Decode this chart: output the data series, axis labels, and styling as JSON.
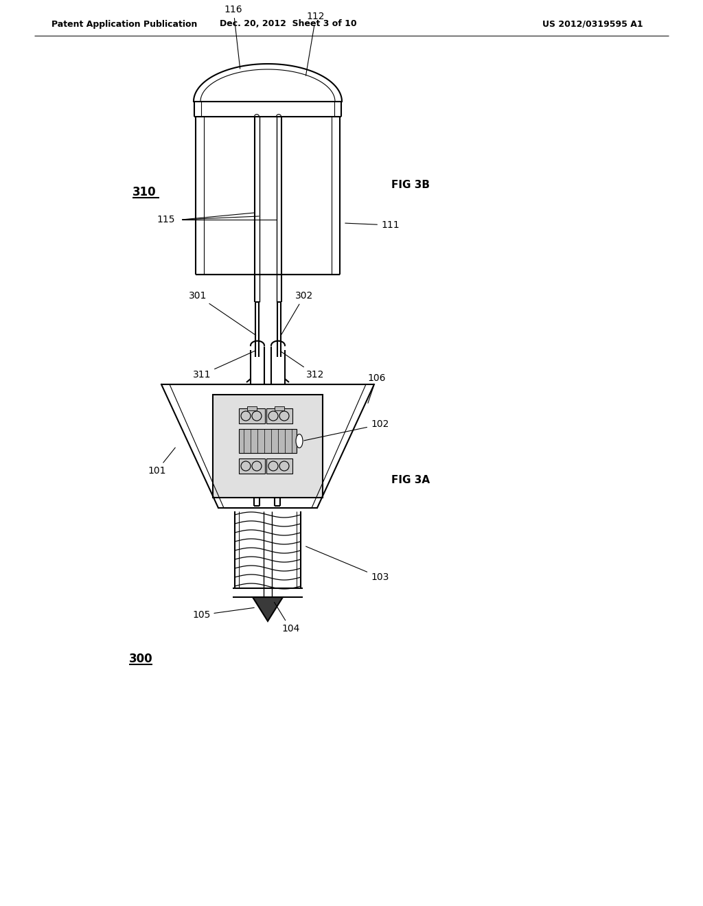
{
  "header_left": "Patent Application Publication",
  "header_mid": "Dec. 20, 2012  Sheet 3 of 10",
  "header_right": "US 2012/0319595 A1",
  "background": "#ffffff",
  "fig3a_label": "FIG 3A",
  "fig3b_label": "FIG 3B",
  "line_color": "#000000"
}
